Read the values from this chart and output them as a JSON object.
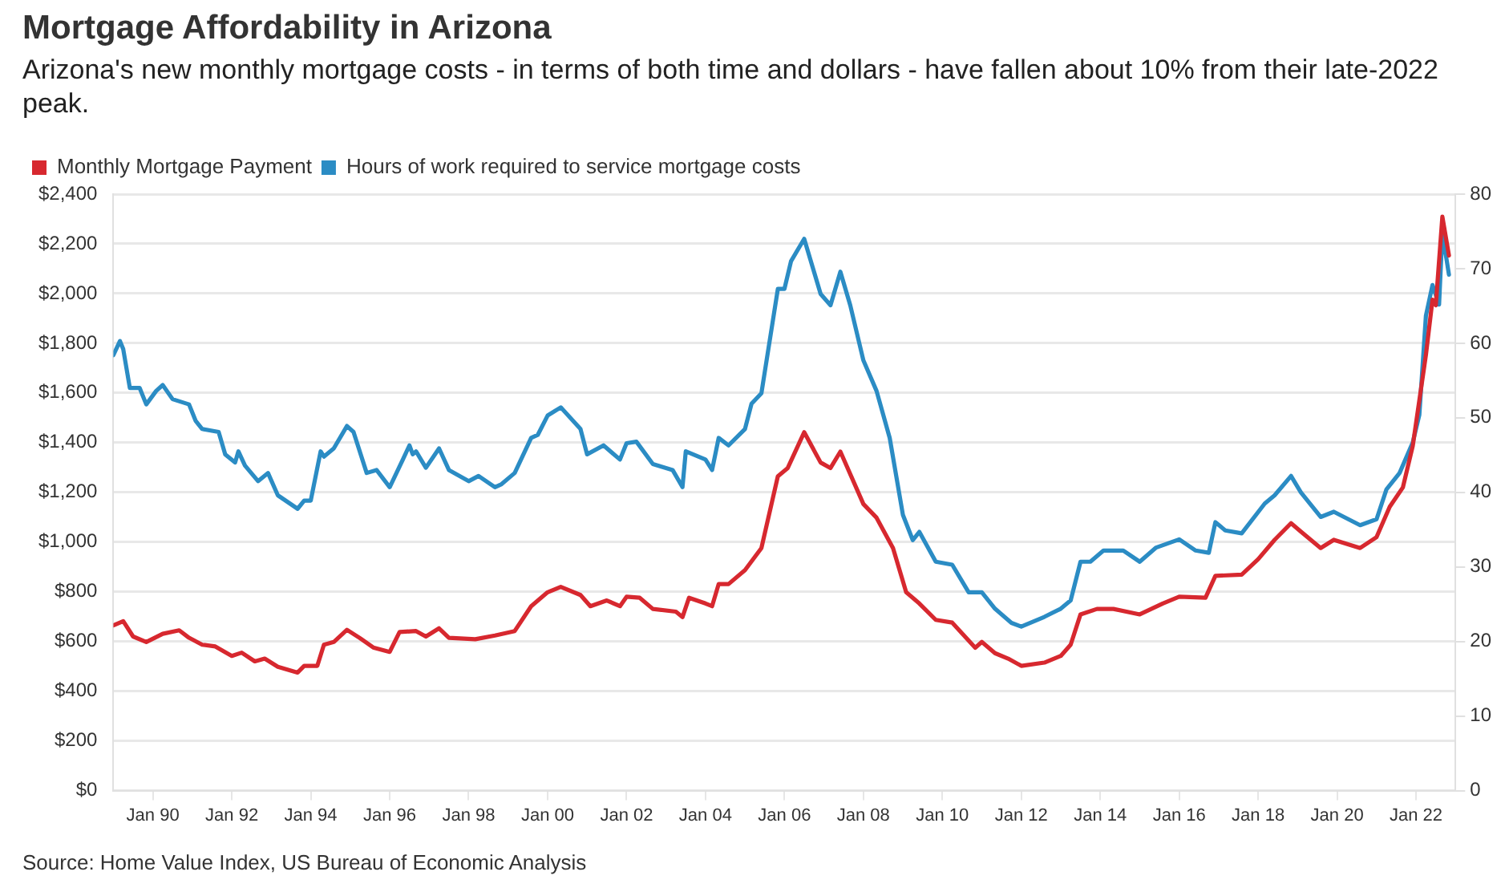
{
  "chart_data": {
    "type": "line",
    "title": "Mortgage Affordability in Arizona",
    "subtitle": "Arizona's new monthly mortgage costs - in terms of both time and dollars - have fallen about 10% from their late-2022 peak.",
    "annotations": [
      "Source: Home Value Index, US Bureau of Economic Analysis"
    ],
    "xlim": [
      "1989-01",
      "2023-01"
    ],
    "xticks": [
      {
        "value": "1990-01",
        "label": "Jan 90"
      },
      {
        "value": "1992-01",
        "label": "Jan 92"
      },
      {
        "value": "1994-01",
        "label": "Jan 94"
      },
      {
        "value": "1996-01",
        "label": "Jan 96"
      },
      {
        "value": "1998-01",
        "label": "Jan 98"
      },
      {
        "value": "2000-01",
        "label": "Jan 00"
      },
      {
        "value": "2002-01",
        "label": "Jan 02"
      },
      {
        "value": "2004-01",
        "label": "Jan 04"
      },
      {
        "value": "2006-01",
        "label": "Jan 06"
      },
      {
        "value": "2008-01",
        "label": "Jan 08"
      },
      {
        "value": "2010-01",
        "label": "Jan 10"
      },
      {
        "value": "2012-01",
        "label": "Jan 12"
      },
      {
        "value": "2014-01",
        "label": "Jan 14"
      },
      {
        "value": "2016-01",
        "label": "Jan 16"
      },
      {
        "value": "2018-01",
        "label": "Jan 18"
      },
      {
        "value": "2020-01",
        "label": "Jan 20"
      },
      {
        "value": "2022-01",
        "label": "Jan 22"
      }
    ],
    "ylim": [
      0,
      2400
    ],
    "yticks": [
      {
        "value": 0,
        "label": "$0"
      },
      {
        "value": 200,
        "label": "$200"
      },
      {
        "value": 400,
        "label": "$400"
      },
      {
        "value": 600,
        "label": "$600"
      },
      {
        "value": 800,
        "label": "$800"
      },
      {
        "value": 1000,
        "label": "$1,000"
      },
      {
        "value": 1200,
        "label": "$1,200"
      },
      {
        "value": 1400,
        "label": "$1,400"
      },
      {
        "value": 1600,
        "label": "$1,600"
      },
      {
        "value": 1800,
        "label": "$1,800"
      },
      {
        "value": 2000,
        "label": "$2,000"
      },
      {
        "value": 2200,
        "label": "$2,200"
      },
      {
        "value": 2400,
        "label": "$2,400"
      }
    ],
    "y2lim": [
      0,
      80
    ],
    "y2ticks": [
      0,
      10,
      20,
      30,
      40,
      50,
      60,
      70,
      80
    ],
    "grid": "y",
    "legend": "top left",
    "marker": "none",
    "line_style": "solid",
    "series": [
      {
        "name": "Monthly Mortgage Payment",
        "color": "#d7282f",
        "x": [
          "1989-01",
          "1989-04",
          "1989-07",
          "1989-11",
          "1990-04",
          "1990-09",
          "1990-12",
          "1991-04",
          "1991-08",
          "1992-01",
          "1992-04",
          "1992-08",
          "1992-11",
          "1993-03",
          "1993-09",
          "1993-11",
          "1994-03",
          "1994-05",
          "1994-08",
          "1994-12",
          "1995-04",
          "1995-08",
          "1996-01",
          "1996-04",
          "1996-09",
          "1996-12",
          "1997-04",
          "1997-07",
          "1998-03",
          "1998-09",
          "1999-03",
          "1999-08",
          "2000-01",
          "2000-05",
          "2000-11",
          "2001-02",
          "2001-07",
          "2001-11",
          "2002-01",
          "2002-05",
          "2002-09",
          "2003-04",
          "2003-06",
          "2003-08",
          "2004-01",
          "2004-03",
          "2004-05",
          "2004-08",
          "2005-01",
          "2005-06",
          "2005-11",
          "2006-02",
          "2006-07",
          "2006-12",
          "2007-03",
          "2007-06",
          "2008-01",
          "2008-05",
          "2008-10",
          "2009-02",
          "2009-06",
          "2009-11",
          "2010-04",
          "2010-11",
          "2011-01",
          "2011-05",
          "2011-09",
          "2012-01",
          "2012-08",
          "2013-01",
          "2013-04",
          "2013-07",
          "2013-12",
          "2014-05",
          "2015-01",
          "2015-08",
          "2016-01",
          "2016-09",
          "2016-12",
          "2017-08",
          "2018-01",
          "2018-06",
          "2018-11",
          "2019-02",
          "2019-08",
          "2019-12",
          "2020-08",
          "2021-01",
          "2021-05",
          "2021-09",
          "2021-12",
          "2022-04",
          "2022-06",
          "2022-07",
          "2022-09",
          "2022-11"
        ],
        "values": [
          665,
          682,
          620,
          598,
          631,
          645,
          615,
          587,
          580,
          542,
          555,
          520,
          531,
          498,
          475,
          502,
          502,
          587,
          598,
          647,
          613,
          576,
          558,
          638,
          642,
          620,
          653,
          615,
          609,
          624,
          642,
          742,
          798,
          820,
          787,
          742,
          765,
          742,
          780,
          776,
          731,
          720,
          698,
          776,
          753,
          742,
          831,
          831,
          887,
          976,
          1265,
          1298,
          1442,
          1320,
          1298,
          1364,
          1153,
          1098,
          976,
          798,
          753,
          687,
          676,
          575,
          598,
          553,
          531,
          502,
          515,
          542,
          587,
          709,
          731,
          731,
          709,
          753,
          780,
          776,
          864,
          869,
          931,
          1009,
          1076,
          1042,
          976,
          1009,
          976,
          1020,
          1142,
          1220,
          1387,
          1753,
          1975,
          1953,
          2309,
          2153
        ]
      },
      {
        "name": "Hours of work required to service mortgage costs",
        "color": "#2b8cc4",
        "axis": "y2",
        "x": [
          "1989-01",
          "1989-03",
          "1989-04",
          "1989-06",
          "1989-09",
          "1989-11",
          "1990-02",
          "1990-04",
          "1990-07",
          "1990-12",
          "1991-02",
          "1991-04",
          "1991-09",
          "1991-11",
          "1992-02",
          "1992-03",
          "1992-05",
          "1992-09",
          "1992-12",
          "1993-03",
          "1993-09",
          "1993-11",
          "1994-01",
          "1994-04",
          "1994-05",
          "1994-08",
          "1994-12",
          "1995-02",
          "1995-06",
          "1995-09",
          "1996-01",
          "1996-05",
          "1996-07",
          "1996-08",
          "1996-09",
          "1996-12",
          "1997-04",
          "1997-07",
          "1998-01",
          "1998-04",
          "1998-09",
          "1998-11",
          "1999-03",
          "1999-08",
          "1999-10",
          "2000-01",
          "2000-05",
          "2000-11",
          "2001-01",
          "2001-06",
          "2001-11",
          "2002-01",
          "2002-04",
          "2002-09",
          "2003-03",
          "2003-06",
          "2003-07",
          "2004-01",
          "2004-03",
          "2004-05",
          "2004-08",
          "2005-01",
          "2005-03",
          "2005-06",
          "2005-11",
          "2006-01",
          "2006-03",
          "2006-07",
          "2006-12",
          "2007-03",
          "2007-06",
          "2007-09",
          "2008-01",
          "2008-05",
          "2008-09",
          "2009-01",
          "2009-04",
          "2009-06",
          "2009-11",
          "2010-04",
          "2010-09",
          "2011-01",
          "2011-05",
          "2011-10",
          "2012-01",
          "2012-08",
          "2013-01",
          "2013-04",
          "2013-07",
          "2013-10",
          "2014-02",
          "2014-08",
          "2015-01",
          "2015-06",
          "2016-01",
          "2016-06",
          "2016-10",
          "2016-12",
          "2017-03",
          "2017-08",
          "2018-03",
          "2018-06",
          "2018-11",
          "2019-02",
          "2019-08",
          "2019-12",
          "2020-08",
          "2021-01",
          "2021-04",
          "2021-08",
          "2021-12",
          "2022-02",
          "2022-04",
          "2022-06",
          "2022-08",
          "2022-09",
          "2022-11"
        ],
        "values": [
          58.4,
          60.3,
          59.2,
          54.0,
          54.0,
          51.8,
          53.6,
          54.4,
          52.5,
          51.8,
          49.6,
          48.5,
          48.1,
          45.1,
          44.0,
          45.5,
          43.6,
          41.5,
          42.6,
          39.6,
          37.8,
          38.9,
          38.9,
          45.5,
          44.8,
          45.9,
          48.9,
          48.1,
          42.6,
          43.0,
          40.7,
          44.4,
          46.3,
          45.1,
          45.5,
          43.3,
          45.9,
          43.0,
          41.5,
          42.2,
          40.7,
          41.1,
          42.6,
          47.3,
          47.7,
          50.3,
          51.4,
          48.5,
          45.1,
          46.3,
          44.4,
          46.6,
          46.8,
          43.8,
          43.0,
          40.7,
          45.5,
          44.4,
          43.0,
          47.3,
          46.3,
          48.5,
          51.9,
          53.3,
          67.3,
          67.3,
          71.0,
          74.0,
          66.6,
          65.1,
          69.6,
          65.1,
          57.7,
          53.6,
          47.3,
          37.0,
          33.6,
          34.7,
          30.7,
          30.3,
          26.6,
          26.6,
          24.4,
          22.5,
          22.0,
          23.3,
          24.4,
          25.5,
          30.7,
          30.7,
          32.2,
          32.2,
          30.7,
          32.6,
          33.7,
          32.2,
          31.9,
          36.0,
          34.9,
          34.5,
          38.5,
          39.6,
          42.2,
          40.0,
          36.7,
          37.4,
          35.6,
          36.4,
          40.4,
          42.6,
          46.7,
          50.4,
          63.7,
          67.8,
          65.2,
          74.8,
          69.2
        ]
      }
    ]
  }
}
